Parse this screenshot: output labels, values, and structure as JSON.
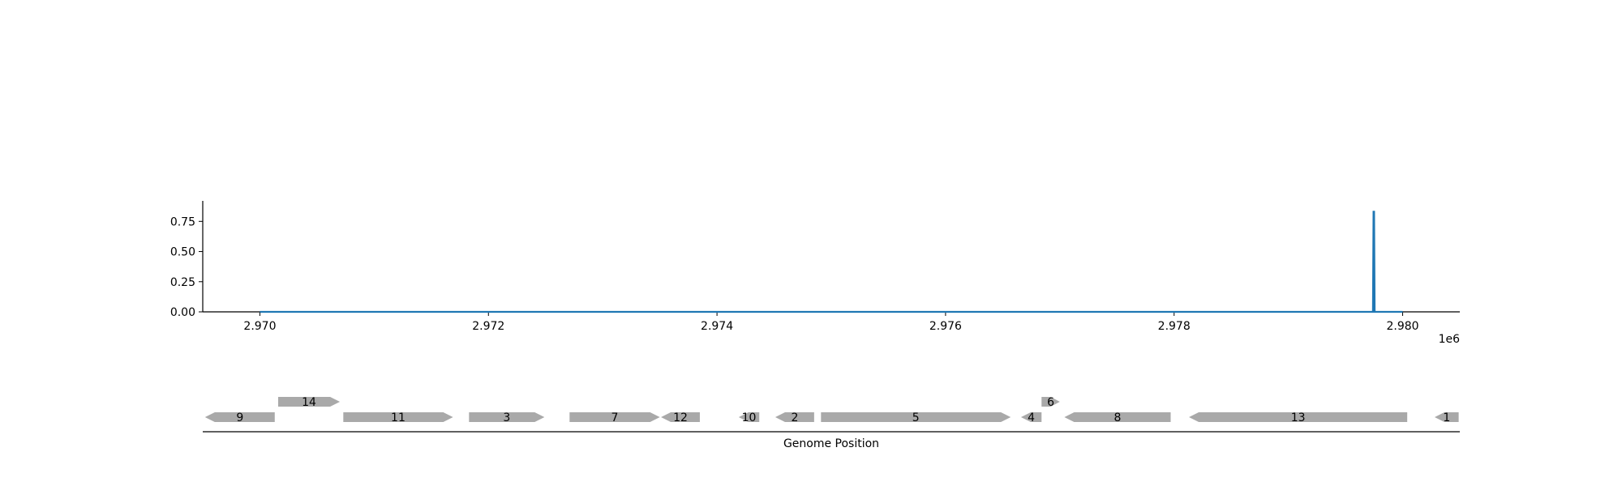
{
  "chart_data": {
    "type": "line",
    "x_offset_label": "1e6",
    "xlim": [
      2969500,
      2980500
    ],
    "ylim": [
      0,
      0.92
    ],
    "x_ticks": [
      {
        "value": 2970000,
        "label": "2.970"
      },
      {
        "value": 2972000,
        "label": "2.972"
      },
      {
        "value": 2974000,
        "label": "2.974"
      },
      {
        "value": 2976000,
        "label": "2.976"
      },
      {
        "value": 2978000,
        "label": "2.978"
      },
      {
        "value": 2980000,
        "label": "2.980"
      }
    ],
    "y_ticks": [
      {
        "value": 0.0,
        "label": "0.00"
      },
      {
        "value": 0.25,
        "label": "0.25"
      },
      {
        "value": 0.5,
        "label": "0.50"
      },
      {
        "value": 0.75,
        "label": "0.75"
      }
    ],
    "series": [
      {
        "color": "#1f77b4",
        "x": [
          2970000,
          2979740,
          2979745,
          2979750,
          2979755,
          2980000
        ],
        "y": [
          0,
          0,
          0.83,
          0.83,
          0,
          0
        ]
      }
    ],
    "genes": {
      "xlabel": "Genome Position",
      "color": "#a9a9a9",
      "items": [
        {
          "label": "9",
          "start": 2969520,
          "end": 2970130,
          "strand": "-",
          "row": 0
        },
        {
          "label": "14",
          "start": 2970160,
          "end": 2970700,
          "strand": "+",
          "row": 1
        },
        {
          "label": "11",
          "start": 2970730,
          "end": 2971690,
          "strand": "+",
          "row": 0
        },
        {
          "label": "3",
          "start": 2971830,
          "end": 2972490,
          "strand": "+",
          "row": 0
        },
        {
          "label": "7",
          "start": 2972710,
          "end": 2973500,
          "strand": "+",
          "row": 0
        },
        {
          "label": "12",
          "start": 2973510,
          "end": 2973850,
          "strand": "-",
          "row": 0
        },
        {
          "label": "10",
          "start": 2974190,
          "end": 2974370,
          "strand": "-",
          "row": 0
        },
        {
          "label": "2",
          "start": 2974510,
          "end": 2974850,
          "strand": "-",
          "row": 0
        },
        {
          "label": "5",
          "start": 2974910,
          "end": 2976570,
          "strand": "+",
          "row": 0
        },
        {
          "label": "4",
          "start": 2976660,
          "end": 2976840,
          "strand": "-",
          "row": 0
        },
        {
          "label": "6",
          "start": 2976840,
          "end": 2977000,
          "strand": "+",
          "row": 1
        },
        {
          "label": "8",
          "start": 2977040,
          "end": 2977970,
          "strand": "-",
          "row": 0
        },
        {
          "label": "13",
          "start": 2978130,
          "end": 2980040,
          "strand": "-",
          "row": 0
        },
        {
          "label": "1",
          "start": 2980280,
          "end": 2980490,
          "strand": "-",
          "row": 0
        }
      ]
    }
  }
}
